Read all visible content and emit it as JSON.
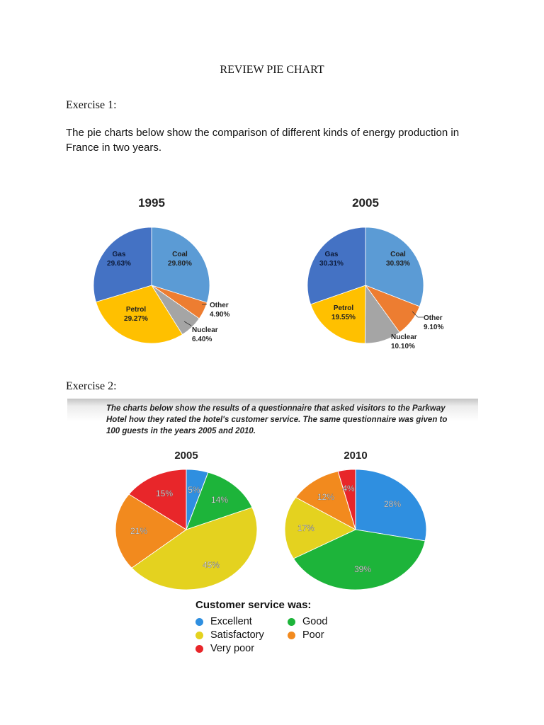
{
  "document": {
    "title": "REVIEW PIE CHART",
    "exercise1": {
      "heading": "Exercise 1:",
      "intro": "The pie charts below show the comparison of different kinds of energy production in France in two years."
    },
    "exercise2": {
      "heading": "Exercise 2:",
      "description": "The charts below show the results of a questionnaire that asked visitors to the Parkway Hotel how they rated the hotel's customer service. The same questionnaire was given to 100 guests in the years 2005 and 2010.",
      "legend_title": "Customer service was:"
    }
  },
  "chart_data": [
    {
      "type": "pie",
      "title": "1995",
      "slices": [
        {
          "label": "Coal",
          "value": 29.8,
          "text": "29.80%",
          "color": "#5b9bd5"
        },
        {
          "label": "Other",
          "value": 4.9,
          "text": "4.90%",
          "color": "#ed7d31"
        },
        {
          "label": "Nuclear",
          "value": 6.4,
          "text": "6.40%",
          "color": "#a5a5a5"
        },
        {
          "label": "Petrol",
          "value": 29.27,
          "text": "29.27%",
          "color": "#ffc000"
        },
        {
          "label": "Gas",
          "value": 29.63,
          "text": "29.63%",
          "color": "#4472c4"
        }
      ]
    },
    {
      "type": "pie",
      "title": "2005",
      "slices": [
        {
          "label": "Coal",
          "value": 30.93,
          "text": "30.93%",
          "color": "#5b9bd5"
        },
        {
          "label": "Other",
          "value": 9.1,
          "text": "9.10%",
          "color": "#ed7d31"
        },
        {
          "label": "Nuclear",
          "value": 10.1,
          "text": "10.10%",
          "color": "#a5a5a5"
        },
        {
          "label": "Petrol",
          "value": 19.55,
          "text": "19.55%",
          "color": "#ffc000"
        },
        {
          "label": "Gas",
          "value": 30.31,
          "text": "30.31%",
          "color": "#4472c4"
        }
      ]
    },
    {
      "type": "pie",
      "title": "2005",
      "slices": [
        {
          "label": "Excellent",
          "value": 5,
          "text": "5%",
          "color": "#2f8fe0"
        },
        {
          "label": "Good",
          "value": 14,
          "text": "14%",
          "color": "#1db43a"
        },
        {
          "label": "Satisfactory",
          "value": 45,
          "text": "45%",
          "color": "#e4d21f"
        },
        {
          "label": "Poor",
          "value": 21,
          "text": "21%",
          "color": "#f28a1e"
        },
        {
          "label": "Very poor",
          "value": 15,
          "text": "15%",
          "color": "#e8262a"
        }
      ]
    },
    {
      "type": "pie",
      "title": "2010",
      "slices": [
        {
          "label": "Excellent",
          "value": 28,
          "text": "28%",
          "color": "#2f8fe0"
        },
        {
          "label": "Good",
          "value": 39,
          "text": "39%",
          "color": "#1db43a"
        },
        {
          "label": "Satisfactory",
          "value": 17,
          "text": "17%",
          "color": "#e4d21f"
        },
        {
          "label": "Poor",
          "value": 12,
          "text": "12%",
          "color": "#f28a1e"
        },
        {
          "label": "Very poor",
          "value": 4,
          "text": "4%",
          "color": "#e8262a"
        }
      ]
    }
  ],
  "legend": [
    {
      "label": "Excellent",
      "color": "#2f8fe0"
    },
    {
      "label": "Good",
      "color": "#1db43a"
    },
    {
      "label": "Satisfactory",
      "color": "#e4d21f"
    },
    {
      "label": "Poor",
      "color": "#f28a1e"
    },
    {
      "label": "Very poor",
      "color": "#e8262a"
    }
  ]
}
